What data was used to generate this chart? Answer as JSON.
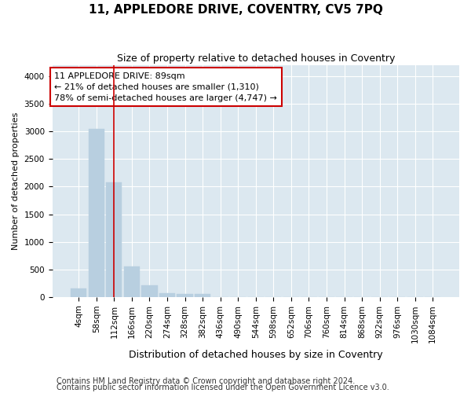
{
  "title": "11, APPLEDORE DRIVE, COVENTRY, CV5 7PQ",
  "subtitle": "Size of property relative to detached houses in Coventry",
  "xlabel": "Distribution of detached houses by size in Coventry",
  "ylabel": "Number of detached properties",
  "footer_line1": "Contains HM Land Registry data © Crown copyright and database right 2024.",
  "footer_line2": "Contains public sector information licensed under the Open Government Licence v3.0.",
  "annotation_title": "11 APPLEDORE DRIVE: 89sqm",
  "annotation_line1": "← 21% of detached houses are smaller (1,310)",
  "annotation_line2": "78% of semi-detached houses are larger (4,747) →",
  "bar_color": "#b8cfe0",
  "bar_edge_color": "#b8cfe0",
  "bg_color": "#dce8f0",
  "grid_color": "#ffffff",
  "fig_bg_color": "#ffffff",
  "annotation_box_facecolor": "#ffffff",
  "annotation_box_edgecolor": "#cc0000",
  "vline_color": "#cc0000",
  "ylim": [
    0,
    4200
  ],
  "yticks": [
    0,
    500,
    1000,
    1500,
    2000,
    2500,
    3000,
    3500,
    4000
  ],
  "categories": [
    "4sqm",
    "58sqm",
    "112sqm",
    "166sqm",
    "220sqm",
    "274sqm",
    "328sqm",
    "382sqm",
    "436sqm",
    "490sqm",
    "544sqm",
    "598sqm",
    "652sqm",
    "706sqm",
    "760sqm",
    "814sqm",
    "868sqm",
    "922sqm",
    "976sqm",
    "1030sqm",
    "1084sqm"
  ],
  "values": [
    150,
    3050,
    2080,
    550,
    205,
    75,
    55,
    50,
    0,
    0,
    0,
    0,
    0,
    0,
    0,
    0,
    0,
    0,
    0,
    0,
    0
  ],
  "vline_x": 1.97,
  "title_fontsize": 11,
  "subtitle_fontsize": 9,
  "ylabel_fontsize": 8,
  "xlabel_fontsize": 9,
  "tick_fontsize": 7.5,
  "footer_fontsize": 7,
  "annotation_fontsize": 8
}
